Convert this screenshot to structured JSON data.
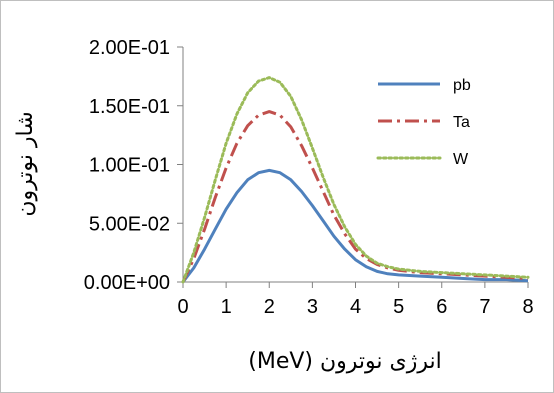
{
  "chart_data": {
    "type": "line",
    "xlabel": "انرژی نوترون (MeV)",
    "ylabel": "شار نوترون",
    "xlim": [
      0,
      8
    ],
    "ylim": [
      0,
      0.2
    ],
    "x_ticks": [
      "0",
      "1",
      "2",
      "3",
      "4",
      "5",
      "6",
      "7",
      "8"
    ],
    "y_ticks": [
      "0.00E+00",
      "5.00E-02",
      "1.00E-01",
      "1.50E-01",
      "2.00E-01"
    ],
    "grid": false,
    "legend_position": "top-right",
    "x": [
      0,
      0.25,
      0.5,
      0.75,
      1.0,
      1.25,
      1.5,
      1.75,
      2.0,
      2.25,
      2.5,
      2.75,
      3.0,
      3.25,
      3.5,
      3.75,
      4.0,
      4.25,
      4.5,
      4.75,
      5.0,
      5.5,
      6.0,
      6.5,
      7.0,
      7.5,
      8.0
    ],
    "series": [
      {
        "name": "pb",
        "color": "#4F81BD",
        "dash": "solid",
        "values": [
          0.0,
          0.012,
          0.028,
          0.045,
          0.062,
          0.076,
          0.087,
          0.093,
          0.095,
          0.093,
          0.087,
          0.077,
          0.065,
          0.052,
          0.039,
          0.028,
          0.019,
          0.013,
          0.009,
          0.007,
          0.006,
          0.005,
          0.004,
          0.003,
          0.002,
          0.002,
          0.001
        ]
      },
      {
        "name": "Ta",
        "color": "#C0504D",
        "dash": "dash-dot",
        "values": [
          0.0,
          0.02,
          0.045,
          0.072,
          0.097,
          0.118,
          0.133,
          0.142,
          0.145,
          0.142,
          0.132,
          0.116,
          0.097,
          0.077,
          0.057,
          0.041,
          0.028,
          0.02,
          0.015,
          0.012,
          0.01,
          0.008,
          0.007,
          0.006,
          0.005,
          0.004,
          0.003
        ]
      },
      {
        "name": "W",
        "color": "#9BBB59",
        "dash": "dotted",
        "values": [
          0.0,
          0.025,
          0.055,
          0.087,
          0.118,
          0.143,
          0.161,
          0.171,
          0.174,
          0.17,
          0.158,
          0.138,
          0.114,
          0.089,
          0.066,
          0.047,
          0.032,
          0.022,
          0.016,
          0.013,
          0.011,
          0.009,
          0.008,
          0.007,
          0.006,
          0.005,
          0.004
        ]
      }
    ]
  }
}
